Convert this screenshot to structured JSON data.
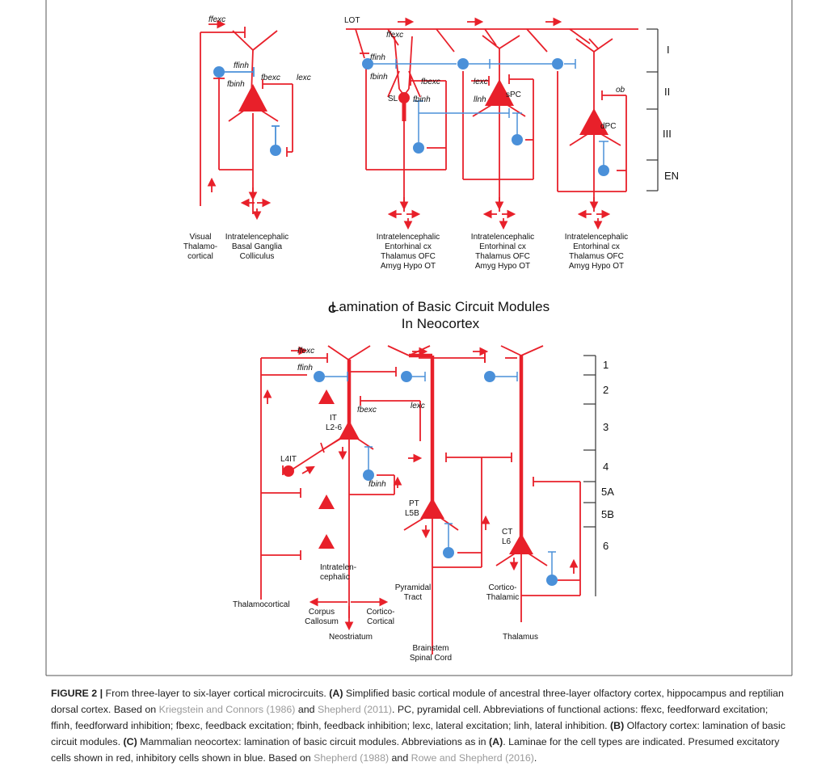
{
  "panel_b": {
    "label_lot": "LOT",
    "layers": [
      "I",
      "II",
      "III",
      "EN"
    ],
    "cells": [
      "SL",
      "sPC",
      "dPC"
    ],
    "actions": {
      "ffexc": "ffexc",
      "ffinh": "ffinh",
      "fbinh": "fbinh",
      "fbexc": "fbexc",
      "lexc": "lexc",
      "llnh": "llnh",
      "ob": "ob"
    },
    "targets_col": [
      "Intratelencephalic",
      "Entorhinal cx",
      "Thalamus OFC",
      "Amyg Hypo OT"
    ]
  },
  "panel_a": {
    "actions": {
      "ffexc": "ffexc",
      "ffinh": "ffinh",
      "fbinh": "fbinh",
      "fbexc": "fbexc",
      "lexc": "lexc"
    },
    "input": [
      "Visual",
      "Thalamo-",
      "cortical"
    ],
    "targets": [
      "Intratelencephalic",
      "Basal Ganglia",
      "Colliculus"
    ]
  },
  "panel_c": {
    "letter": "C",
    "title": [
      "Lamination of Basic Circuit Modules",
      "In Neocortex"
    ],
    "layers": [
      "1",
      "2",
      "3",
      "4",
      "5A",
      "5B",
      "6"
    ],
    "actions": {
      "ffexc": "ffexc",
      "ffinh": "ffinh",
      "fbexc": "fbexc",
      "lexc": "lexc",
      "fbinh": "fbinh"
    },
    "cells": {
      "it": [
        "IT",
        "L2-6"
      ],
      "l4it": "L4IT",
      "pt": [
        "PT",
        "L5B"
      ],
      "ct": [
        "CT",
        "L6"
      ]
    },
    "outputs": {
      "thalamocortical": "Thalamocortical",
      "intratelen": [
        "Intratelen-",
        "cephalic"
      ],
      "corpus": [
        "Corpus",
        "Callosum"
      ],
      "cortico_cortical": [
        "Cortico-",
        "Cortical"
      ],
      "neostriatum": "Neostriatum",
      "pyramidal_tract": [
        "Pyramidal",
        "Tract"
      ],
      "brainstem": [
        "Brainstem",
        "Spinal Cord"
      ],
      "cortico_thalamic": [
        "Cortico-",
        "Thalamic"
      ],
      "thalamus": "Thalamus"
    }
  },
  "caption": {
    "figure_label": "FIGURE 2 |",
    "s1": " From three-layer to six-layer cortical microcircuits. ",
    "a": "(A)",
    "s2": " Simplified basic cortical module of ancestral three-layer olfactory cortex, hippocampus and reptilian dorsal cortex. Based on ",
    "ref1": "Kriegstein and Connors (1986)",
    "s3": " and ",
    "ref2": "Shepherd (2011)",
    "s4": ". PC, pyramidal cell. Abbreviations of functional actions: ffexc, feedforward excitation; ffinh, feedforward inhibition; fbexc, feedback excitation; fbinh, feedback inhibition; lexc, lateral excitation; linh, lateral inhibition. ",
    "b": "(B)",
    "s5": " Olfactory cortex: lamination of basic circuit modules. ",
    "c": "(C)",
    "s6": " Mammalian neocortex: lamination of basic circuit modules. Abbreviations as in ",
    "a2": "(A)",
    "s7": ". Laminae for the cell types are indicated. Presumed excitatory cells shown in red, inhibitory cells shown in blue. Based on ",
    "ref3": "Shepherd (1988)",
    "s8": " and ",
    "ref4": "Rowe and Shepherd (2016)",
    "s9": "."
  },
  "colors": {
    "excitatory": "#e8202a",
    "inhibitory": "#4a90d9",
    "frame": "#555555"
  }
}
